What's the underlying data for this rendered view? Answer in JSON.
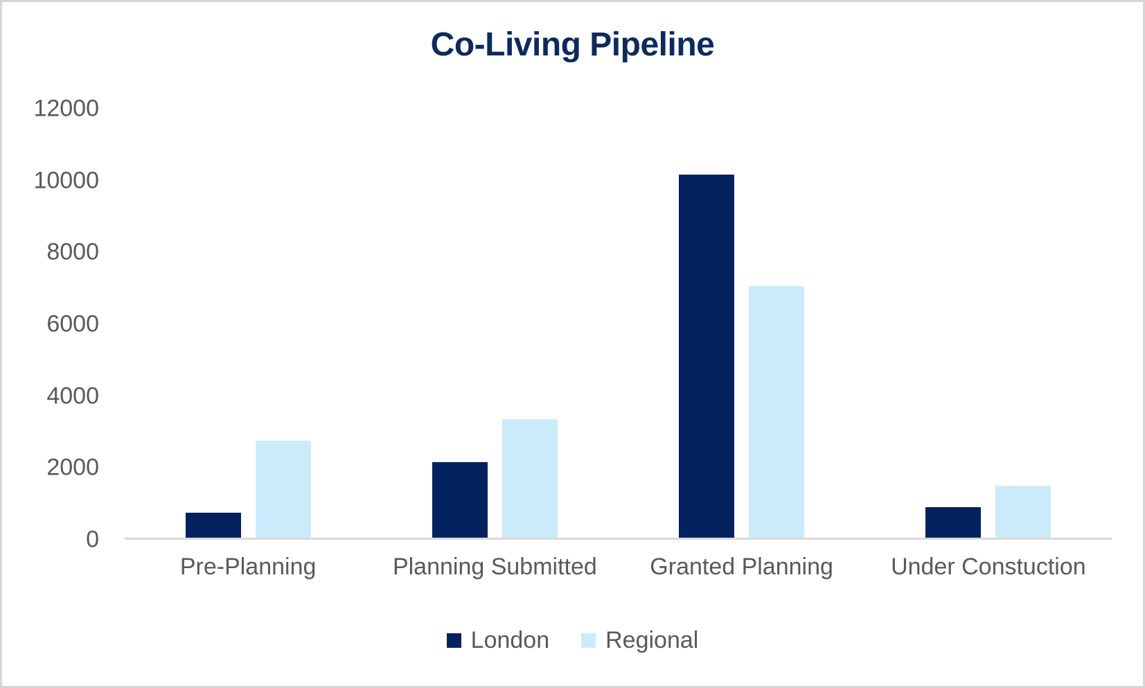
{
  "chart_data": {
    "type": "bar",
    "title": "Co-Living Pipeline",
    "categories": [
      "Pre-Planning",
      "Planning Submitted",
      "Granted Planning",
      "Under Constuction"
    ],
    "series": [
      {
        "name": "London",
        "color": "#04225f",
        "values": [
          700,
          2100,
          10100,
          850
        ]
      },
      {
        "name": "Regional",
        "color": "#cbebfb",
        "values": [
          2700,
          3300,
          7000,
          1450
        ]
      }
    ],
    "xlabel": "",
    "ylabel": "",
    "ylim": [
      0,
      12000
    ],
    "yticks": [
      0,
      2000,
      4000,
      6000,
      8000,
      10000,
      12000
    ],
    "grid": false,
    "legend_position": "bottom"
  },
  "colors": {
    "title": "#0e2a5c",
    "axis_text": "#595959",
    "axis_line": "#d9d9d9",
    "frame_border": "#d6d6d6",
    "background": "#ffffff"
  }
}
